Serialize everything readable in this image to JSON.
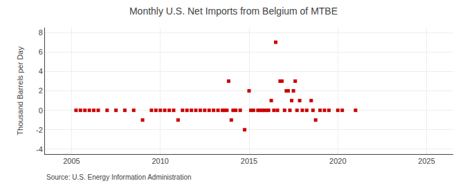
{
  "chart_data": {
    "type": "scatter",
    "title": "Monthly U.S. Net Imports from Belgium of MTBE",
    "y_label": "Thousand Barrels per Day",
    "annotations": [
      "Source: U.S. Energy Information Administration"
    ],
    "color": "#cc0000",
    "marker": "square",
    "grid": true,
    "xlim": [
      2003.5,
      2026.5
    ],
    "ylim": [
      -4.5,
      8.5
    ],
    "xticks": [
      2005,
      2010,
      2015,
      2020,
      2025
    ],
    "yticks": [
      -4,
      -2,
      0,
      2,
      4,
      6,
      8
    ],
    "x": [
      2005.25,
      2005.5,
      2005.75,
      2006.0,
      2006.25,
      2006.5,
      2007.0,
      2007.5,
      2008.0,
      2008.5,
      2009.0,
      2009.5,
      2009.75,
      2010.0,
      2010.25,
      2010.5,
      2010.75,
      2011.0,
      2011.25,
      2011.5,
      2011.75,
      2012.0,
      2012.25,
      2012.5,
      2012.75,
      2013.0,
      2013.25,
      2013.5,
      2013.6,
      2013.75,
      2013.85,
      2014.0,
      2014.1,
      2014.25,
      2014.5,
      2014.75,
      2015.0,
      2015.1,
      2015.25,
      2015.5,
      2015.6,
      2015.75,
      2015.85,
      2016.0,
      2016.1,
      2016.25,
      2016.4,
      2016.5,
      2016.6,
      2016.75,
      2016.85,
      2017.0,
      2017.1,
      2017.2,
      2017.3,
      2017.4,
      2017.5,
      2017.6,
      2017.7,
      2017.85,
      2018.0,
      2018.25,
      2018.5,
      2018.6,
      2018.75,
      2019.0,
      2019.25,
      2019.5,
      2020.0,
      2020.25,
      2021.0
    ],
    "values": [
      0,
      0,
      0,
      0,
      0,
      0,
      0,
      0,
      0,
      0,
      -1,
      0,
      0,
      0,
      0,
      0,
      0,
      -1,
      0,
      0,
      0,
      0,
      0,
      0,
      0,
      0,
      0,
      0,
      0,
      0,
      3,
      -1,
      0,
      0,
      0,
      -2,
      2,
      0,
      0,
      0,
      0,
      0,
      0,
      0,
      0,
      1,
      0,
      7,
      0,
      3,
      3,
      0,
      2,
      2,
      0,
      1,
      2,
      3,
      0,
      1,
      0,
      0,
      1,
      0,
      -1,
      0,
      0,
      0,
      0,
      0,
      0
    ]
  }
}
